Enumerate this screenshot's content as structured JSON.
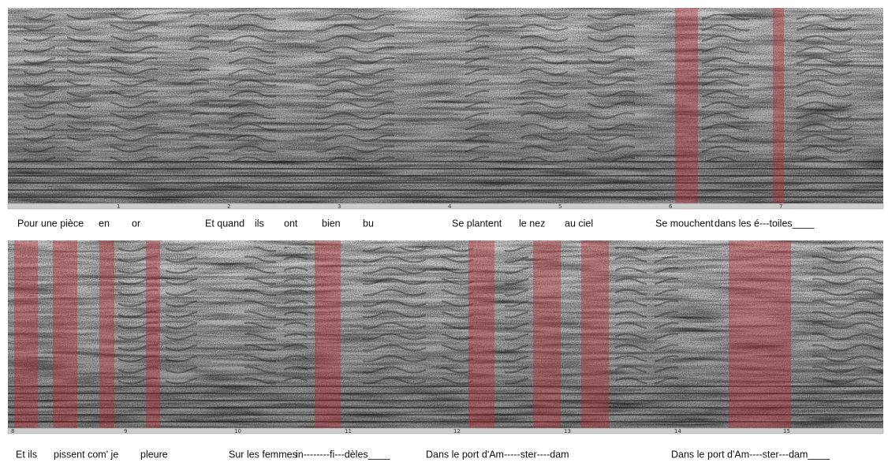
{
  "panels": [
    {
      "ticks": [
        "1",
        "2",
        "3",
        "4",
        "5",
        "6",
        "7"
      ],
      "lyrics": [
        "Pour une pièce",
        "en",
        "or",
        "Et quand",
        "ils",
        "ont",
        "bien",
        "bu",
        "Se plantent",
        "le nez",
        "au ciel",
        "Se mouchent",
        "dans les é---toiles____"
      ]
    },
    {
      "ticks": [
        "8",
        "9",
        "10",
        "11",
        "12",
        "13",
        "14",
        "15"
      ],
      "lyrics": [
        "Et ils",
        "pissent com' je",
        "pleure",
        "Sur les femmes",
        "in--------fi---dèles____",
        "Dans le port d'Am-----ster----dam",
        "Dans le",
        "port d'Am----ster---dam____"
      ]
    }
  ]
}
